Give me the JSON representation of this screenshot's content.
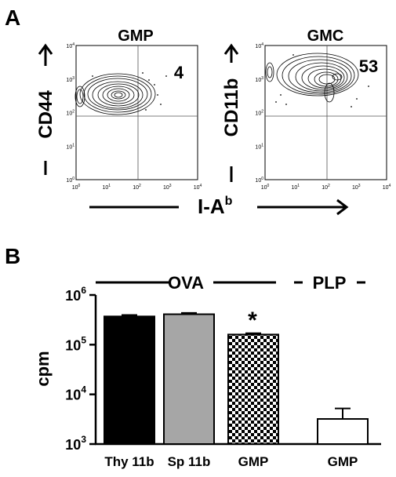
{
  "panel_a": {
    "label": "A",
    "shared_xlabel": "I-A",
    "shared_xlabel_sup": "b",
    "plots": [
      {
        "title": "GMP",
        "ylabel": "CD44",
        "ylabel_sup": "",
        "quadrant_value": "4"
      },
      {
        "title": "GMC",
        "ylabel": "CD11b",
        "ylabel_sup": "",
        "quadrant_value": "53"
      }
    ],
    "tick_labels": [
      {
        "base": "10",
        "exp": "0"
      },
      {
        "base": "10",
        "exp": "1"
      },
      {
        "base": "10",
        "exp": "2"
      },
      {
        "base": "10",
        "exp": "3"
      },
      {
        "base": "10",
        "exp": "4"
      }
    ]
  },
  "panel_b": {
    "label": "B",
    "group_labels": [
      {
        "text": "OVA",
        "dashed": false
      },
      {
        "text": "PLP",
        "dashed": true
      }
    ],
    "significance_mark": "*"
  },
  "chart_data": [
    {
      "type": "scatter",
      "title": "GMP",
      "xlabel": "I-Ab",
      "ylabel": "CD44",
      "xscale": "log",
      "yscale": "log",
      "xlim": [
        1,
        10000
      ],
      "ylim": [
        1,
        10000
      ],
      "quadrant_label": "4",
      "description": "contour"
    },
    {
      "type": "scatter",
      "title": "GMC",
      "xlabel": "I-Ab",
      "ylabel": "CD11b",
      "xscale": "log",
      "yscale": "log",
      "xlim": [
        1,
        10000
      ],
      "ylim": [
        1,
        10000
      ],
      "quadrant_label": "53",
      "description": "contour"
    },
    {
      "type": "bar",
      "title": "",
      "xlabel": "",
      "ylabel": "cpm",
      "yscale": "log",
      "ylim": [
        1000,
        1000000
      ],
      "categories": [
        "Thy 11b",
        "Sp 11b",
        "GMP",
        "GMP"
      ],
      "values": [
        370000,
        410000,
        160000,
        3200
      ],
      "errors": [
        25000,
        25000,
        10000,
        2000
      ],
      "fills": [
        "#000000",
        "#a6a6a6",
        "checker",
        "#ffffff"
      ],
      "groups": [
        "OVA",
        "OVA",
        "OVA",
        "PLP"
      ],
      "grid": false
    }
  ]
}
